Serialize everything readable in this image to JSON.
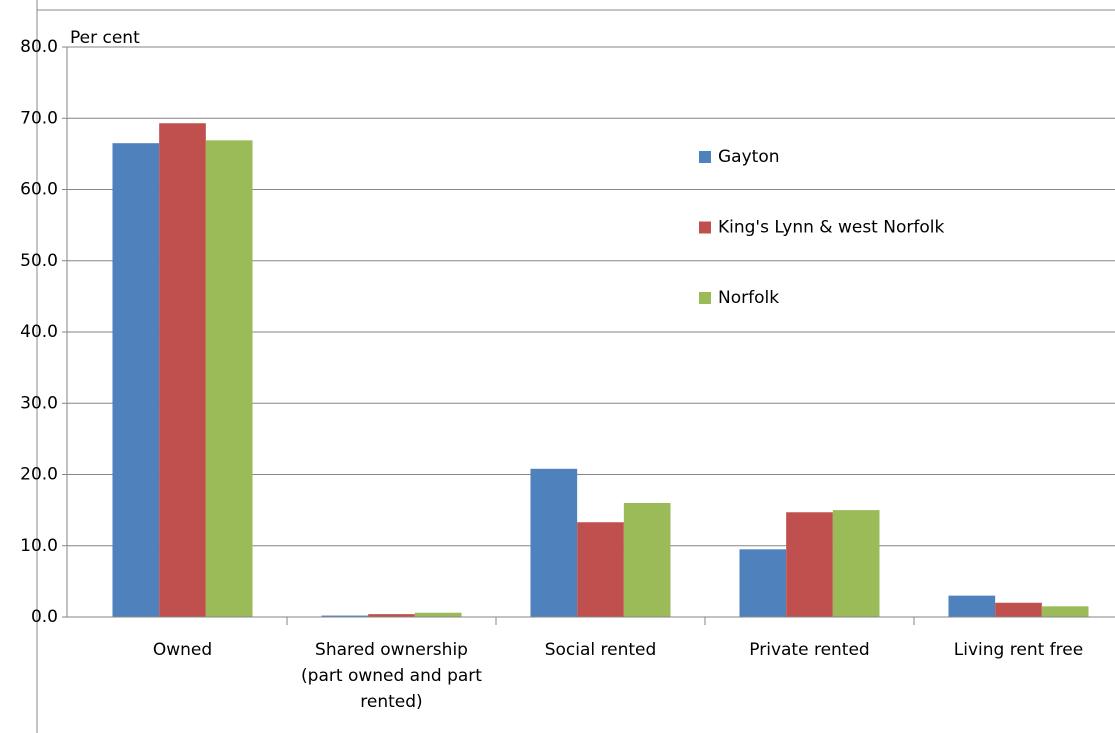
{
  "chart_data": {
    "type": "bar",
    "y_label": "Per cent",
    "categories": [
      "Owned",
      "Shared ownership (part owned and part rented)",
      "Social rented",
      "Private rented",
      "Living rent free"
    ],
    "series": [
      {
        "name": "Gayton",
        "color": "#4f81bd",
        "values": [
          66.5,
          0.2,
          20.8,
          9.5,
          3.0
        ]
      },
      {
        "name": "King's Lynn & west Norfolk",
        "color": "#c0504d",
        "values": [
          69.3,
          0.4,
          13.3,
          14.7,
          2.0
        ]
      },
      {
        "name": "Norfolk",
        "color": "#9bbb59",
        "values": [
          66.9,
          0.6,
          16.0,
          15.0,
          1.5
        ]
      }
    ],
    "ylim": [
      0,
      80
    ],
    "yticks": [
      {
        "value": 0,
        "label": "0.0"
      },
      {
        "value": 10,
        "label": "10.0"
      },
      {
        "value": 20,
        "label": "20.0"
      },
      {
        "value": 30,
        "label": "30.0"
      },
      {
        "value": 40,
        "label": "40.0"
      },
      {
        "value": 50,
        "label": "50.0"
      },
      {
        "value": 60,
        "label": "60.0"
      },
      {
        "value": 70,
        "label": "70.0"
      },
      {
        "value": 80,
        "label": "80.0"
      }
    ],
    "grid": true,
    "legend": "right"
  }
}
